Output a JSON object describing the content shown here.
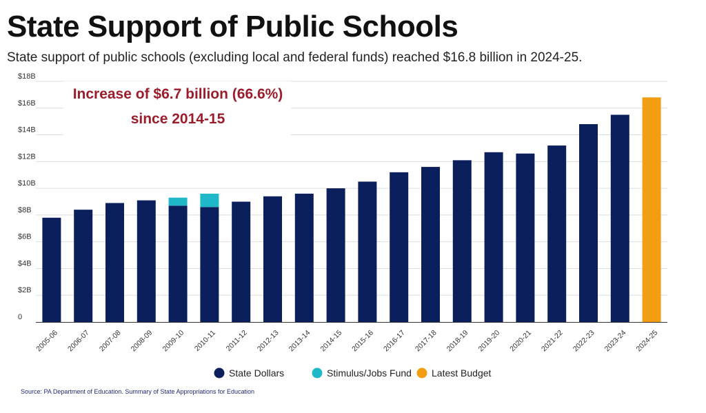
{
  "header": {
    "title": "State Support of Public Schools",
    "subtitle": "State support of public schools (excluding local and federal funds) reached $16.8 billion in 2024-25."
  },
  "annotation": {
    "line1": "Increase of $6.7 billion (66.6%)",
    "line2": "since 2014-15",
    "color": "#9b1c2a"
  },
  "source": "Source: PA Department of Education. Summary of State Appropriations for Education",
  "colors": {
    "state": "#0b1f5c",
    "stimulus": "#1fb8c9",
    "latest": "#f29d12",
    "grid": "#dddddd",
    "axis": "#333333"
  },
  "chart_data": {
    "type": "bar",
    "stacked": true,
    "categories": [
      "2005-06",
      "2006-07",
      "2007-08",
      "2008-09",
      "2009-10",
      "2010-11",
      "2011-12",
      "2012-13",
      "2013-14",
      "2014-15",
      "2015-16",
      "2016-17",
      "2017-18",
      "2018-19",
      "2019-20",
      "2020-21",
      "2021-22",
      "2022-23",
      "2023-24",
      "2024-25"
    ],
    "series": [
      {
        "name": "State Dollars",
        "color": "#0b1f5c",
        "values": [
          7.8,
          8.4,
          8.9,
          9.1,
          8.7,
          8.6,
          9.0,
          9.4,
          9.6,
          10.0,
          10.5,
          11.2,
          11.6,
          12.1,
          12.7,
          12.6,
          13.2,
          14.8,
          15.5,
          null
        ]
      },
      {
        "name": "Stimulus/Jobs Fund",
        "color": "#1fb8c9",
        "values": [
          0,
          0,
          0,
          0,
          0.6,
          1.0,
          0,
          0,
          0,
          0,
          0,
          0,
          0,
          0,
          0,
          0,
          0,
          0,
          0,
          null
        ]
      },
      {
        "name": "Latest Budget",
        "color": "#f29d12",
        "values": [
          null,
          null,
          null,
          null,
          null,
          null,
          null,
          null,
          null,
          null,
          null,
          null,
          null,
          null,
          null,
          null,
          null,
          null,
          null,
          16.8
        ]
      }
    ],
    "yticks": [
      "0",
      "$2B",
      "$4B",
      "$6B",
      "$8B",
      "$10B",
      "$12B",
      "$14B",
      "$16B",
      "$18B"
    ],
    "ylim": [
      0,
      18
    ],
    "unit": "billion dollars",
    "grid": true,
    "legend_position": "bottom"
  }
}
